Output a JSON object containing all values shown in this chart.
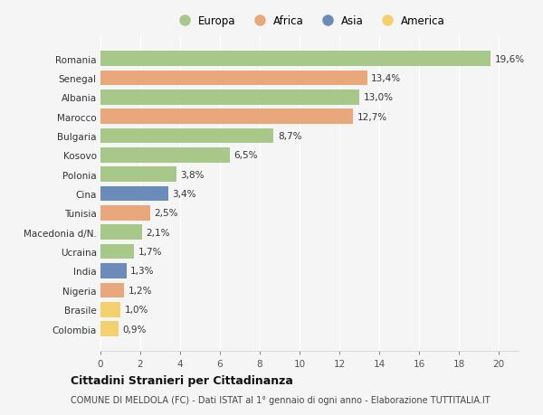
{
  "countries": [
    "Romania",
    "Senegal",
    "Albania",
    "Marocco",
    "Bulgaria",
    "Kosovo",
    "Polonia",
    "Cina",
    "Tunisia",
    "Macedonia d/N.",
    "Ucraina",
    "India",
    "Nigeria",
    "Brasile",
    "Colombia"
  ],
  "values": [
    19.6,
    13.4,
    13.0,
    12.7,
    8.7,
    6.5,
    3.8,
    3.4,
    2.5,
    2.1,
    1.7,
    1.3,
    1.2,
    1.0,
    0.9
  ],
  "labels": [
    "19,6%",
    "13,4%",
    "13,0%",
    "12,7%",
    "8,7%",
    "6,5%",
    "3,8%",
    "3,4%",
    "2,5%",
    "2,1%",
    "1,7%",
    "1,3%",
    "1,2%",
    "1,0%",
    "0,9%"
  ],
  "continents": [
    "Europa",
    "Africa",
    "Europa",
    "Africa",
    "Europa",
    "Europa",
    "Europa",
    "Asia",
    "Africa",
    "Europa",
    "Europa",
    "Asia",
    "Africa",
    "America",
    "America"
  ],
  "colors": {
    "Europa": "#a8c88a",
    "Africa": "#e8a87c",
    "Asia": "#6b8cba",
    "America": "#f5d06e"
  },
  "legend_order": [
    "Europa",
    "Africa",
    "Asia",
    "America"
  ],
  "xlim": [
    0,
    21
  ],
  "xticks": [
    0,
    2,
    4,
    6,
    8,
    10,
    12,
    14,
    16,
    18,
    20
  ],
  "title": "Cittadini Stranieri per Cittadinanza",
  "subtitle": "COMUNE DI MELDOLA (FC) - Dati ISTAT al 1° gennaio di ogni anno - Elaborazione TUTTITALIA.IT",
  "bg_color": "#f5f5f5",
  "grid_color": "#ffffff",
  "bar_height": 0.78
}
